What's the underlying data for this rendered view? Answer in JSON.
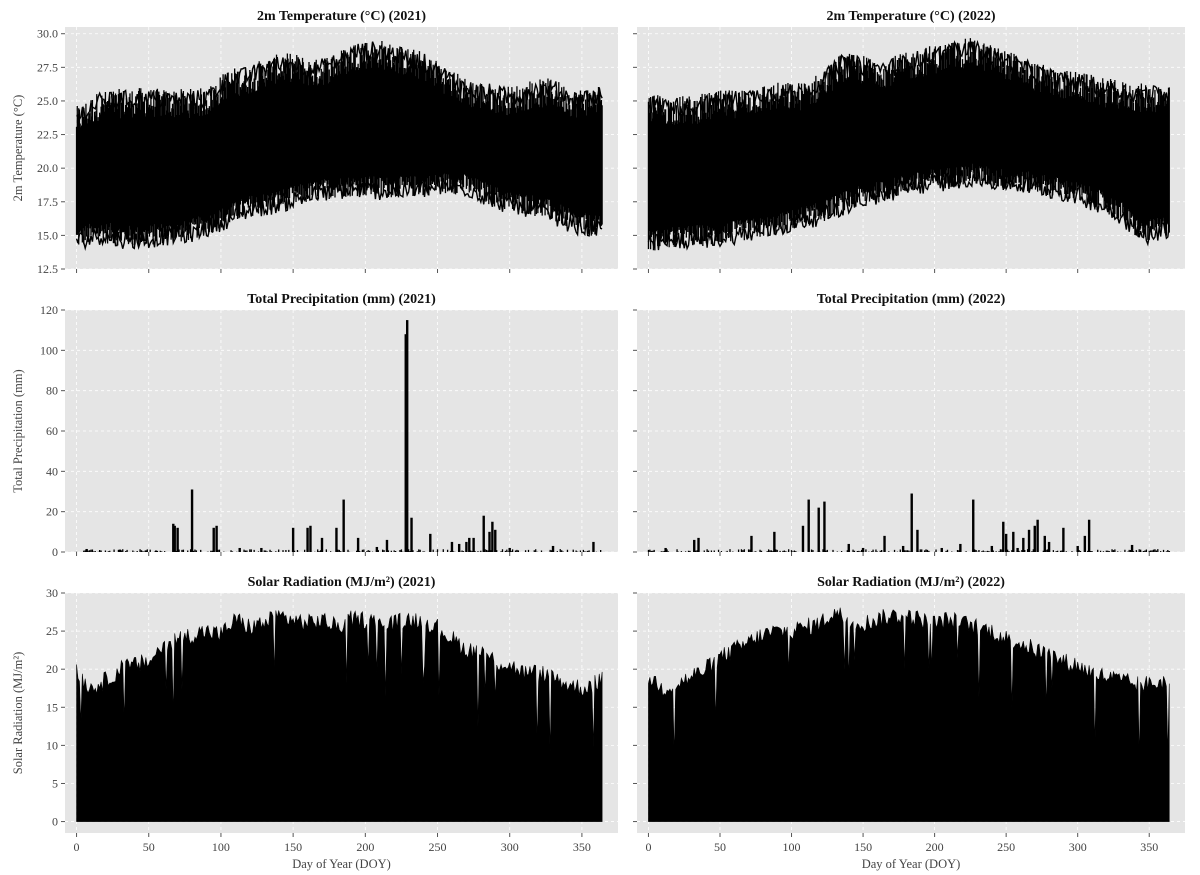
{
  "figure": {
    "x_label": "Day of Year (DOY)"
  },
  "chart_data": [
    {
      "type": "line",
      "title": "2m Temperature (°C) (2021)",
      "ylabel": "2m Temperature (°C)",
      "xlabel": "",
      "xlim": [
        -8,
        375
      ],
      "ylim": [
        12.5,
        30.5
      ],
      "yticks": [
        12.5,
        15.0,
        17.5,
        20.0,
        22.5,
        25.0,
        27.5,
        30.0
      ],
      "ytick_labels": [
        "12.5",
        "15.0",
        "17.5",
        "20.0",
        "22.5",
        "25.0",
        "27.5",
        "30.0"
      ],
      "xticks": [
        0,
        50,
        100,
        150,
        200,
        250,
        300,
        350
      ],
      "xtick_labels": [],
      "grid": true,
      "series_style": "daily min-max envelope (hourly values)",
      "x": [
        0,
        15,
        30,
        45,
        60,
        75,
        90,
        105,
        120,
        135,
        150,
        165,
        180,
        195,
        210,
        225,
        240,
        255,
        270,
        285,
        300,
        315,
        330,
        345,
        364
      ],
      "min": [
        14.8,
        15.3,
        15.0,
        14.9,
        15.2,
        15.3,
        15.8,
        16.5,
        17.2,
        17.5,
        17.9,
        18.3,
        18.6,
        18.7,
        18.6,
        18.6,
        18.7,
        18.9,
        18.8,
        18.1,
        17.5,
        17.3,
        16.8,
        16.0,
        15.6
      ],
      "max": [
        23.5,
        24.6,
        24.8,
        24.9,
        24.8,
        24.8,
        24.9,
        26.3,
        26.6,
        27.3,
        27.5,
        27.0,
        27.6,
        28.4,
        28.5,
        28.0,
        27.6,
        26.6,
        25.6,
        25.3,
        25.0,
        25.5,
        25.6,
        24.8,
        25.2
      ]
    },
    {
      "type": "line",
      "title": "2m Temperature (°C) (2022)",
      "ylabel": "",
      "xlabel": "",
      "xlim": [
        -8,
        375
      ],
      "ylim": [
        12.5,
        30.5
      ],
      "yticks": [
        12.5,
        15.0,
        17.5,
        20.0,
        22.5,
        25.0,
        27.5,
        30.0
      ],
      "ytick_labels": [],
      "xticks": [
        0,
        50,
        100,
        150,
        200,
        250,
        300,
        350
      ],
      "xtick_labels": [],
      "grid": true,
      "series_style": "daily min-max envelope (hourly values)",
      "x": [
        0,
        15,
        30,
        45,
        60,
        75,
        90,
        105,
        120,
        135,
        150,
        165,
        180,
        195,
        210,
        225,
        240,
        255,
        270,
        285,
        300,
        315,
        330,
        345,
        364
      ],
      "min": [
        14.6,
        14.8,
        15.0,
        15.0,
        15.3,
        15.5,
        15.8,
        16.3,
        16.7,
        17.4,
        18.0,
        18.3,
        18.8,
        19.1,
        19.3,
        19.6,
        19.3,
        19.1,
        18.9,
        18.6,
        18.2,
        17.6,
        16.8,
        15.2,
        15.8
      ],
      "max": [
        24.5,
        24.3,
        24.3,
        24.6,
        24.8,
        25.1,
        25.3,
        25.3,
        26.0,
        27.5,
        27.3,
        27.1,
        27.5,
        28.0,
        28.3,
        28.6,
        28.1,
        27.5,
        26.8,
        26.3,
        26.1,
        25.7,
        25.4,
        25.2,
        25.2
      ]
    },
    {
      "type": "bar",
      "title": "Total Precipitation (mm) (2021)",
      "ylabel": "Total Precipitation (mm)",
      "xlabel": "",
      "xlim": [
        -8,
        375
      ],
      "ylim": [
        0,
        120
      ],
      "yticks": [
        0,
        20,
        40,
        60,
        80,
        100,
        120
      ],
      "ytick_labels": [
        "0",
        "20",
        "40",
        "60",
        "80",
        "100",
        "120"
      ],
      "xticks": [
        0,
        50,
        100,
        150,
        200,
        250,
        300,
        350
      ],
      "xtick_labels": [],
      "grid": true,
      "x": [
        7,
        30,
        48,
        55,
        67,
        68,
        70,
        80,
        95,
        97,
        113,
        128,
        150,
        160,
        162,
        170,
        180,
        185,
        195,
        208,
        215,
        228,
        229,
        232,
        245,
        260,
        265,
        270,
        272,
        275,
        282,
        286,
        288,
        290,
        300,
        330,
        358
      ],
      "values": [
        1.5,
        1.2,
        0.8,
        0.5,
        14,
        13,
        12,
        31,
        12,
        13,
        2,
        2,
        12,
        12,
        13,
        7,
        12,
        26,
        7,
        2.5,
        6,
        108,
        115,
        17,
        9,
        5,
        4,
        5,
        7,
        7,
        18,
        10,
        15,
        11,
        2,
        3,
        5
      ]
    },
    {
      "type": "bar",
      "title": "Total Precipitation (mm) (2022)",
      "ylabel": "",
      "xlabel": "",
      "xlim": [
        -8,
        375
      ],
      "ylim": [
        0,
        120
      ],
      "yticks": [
        0,
        20,
        40,
        60,
        80,
        100,
        120
      ],
      "ytick_labels": [],
      "xticks": [
        0,
        50,
        100,
        150,
        200,
        250,
        300,
        350
      ],
      "xtick_labels": [],
      "grid": true,
      "x": [
        12,
        32,
        35,
        72,
        88,
        108,
        112,
        119,
        123,
        140,
        150,
        165,
        178,
        184,
        188,
        205,
        218,
        227,
        240,
        248,
        250,
        255,
        258,
        262,
        266,
        270,
        272,
        277,
        280,
        290,
        300,
        305,
        308,
        338
      ],
      "values": [
        2,
        6,
        7,
        8,
        10,
        13,
        26,
        22,
        25,
        4,
        2,
        8,
        3,
        29,
        11,
        2,
        4,
        26,
        3,
        15,
        9,
        10,
        2,
        7,
        11,
        13,
        16,
        8,
        5,
        12,
        3,
        8,
        16,
        3.5
      ]
    },
    {
      "type": "area",
      "title": "Solar Radiation (MJ/m²) (2021)",
      "ylabel": "Solar Radiation (MJ/m²)",
      "xlabel": "Day of Year (DOY)",
      "xlim": [
        -8,
        375
      ],
      "ylim": [
        -1.5,
        30
      ],
      "yticks": [
        0,
        5,
        10,
        15,
        20,
        25,
        30
      ],
      "ytick_labels": [
        "0",
        "5",
        "10",
        "15",
        "20",
        "25",
        "30"
      ],
      "xticks": [
        0,
        50,
        100,
        150,
        200,
        250,
        300,
        350
      ],
      "xtick_labels": [
        "0",
        "50",
        "100",
        "150",
        "200",
        "250",
        "300",
        "350"
      ],
      "grid": true,
      "x": [
        0,
        10,
        20,
        30,
        40,
        50,
        60,
        70,
        80,
        90,
        100,
        110,
        120,
        130,
        140,
        150,
        160,
        170,
        180,
        190,
        200,
        210,
        220,
        230,
        240,
        250,
        260,
        270,
        280,
        290,
        300,
        310,
        320,
        330,
        340,
        350,
        364
      ],
      "values": [
        19.5,
        17.5,
        18.5,
        20.0,
        20.5,
        21.0,
        23.0,
        24.0,
        24.5,
        25.0,
        24.5,
        26.5,
        25.5,
        26.0,
        27.0,
        26.5,
        26.0,
        26.5,
        25.5,
        26.5,
        26.5,
        26.0,
        26.0,
        26.5,
        26.5,
        25.5,
        24.0,
        22.5,
        22.5,
        21.0,
        20.5,
        19.5,
        19.5,
        19.0,
        18.0,
        17.5,
        18.5
      ]
    },
    {
      "type": "area",
      "title": "Solar Radiation (MJ/m²) (2022)",
      "ylabel": "",
      "xlabel": "Day of Year (DOY)",
      "xlim": [
        -8,
        375
      ],
      "ylim": [
        -1.5,
        30
      ],
      "yticks": [
        0,
        5,
        10,
        15,
        20,
        25,
        30
      ],
      "ytick_labels": [],
      "xticks": [
        0,
        50,
        100,
        150,
        200,
        250,
        300,
        350
      ],
      "xtick_labels": [
        "0",
        "50",
        "100",
        "150",
        "200",
        "250",
        "300",
        "350"
      ],
      "grid": true,
      "x": [
        0,
        10,
        20,
        30,
        40,
        50,
        60,
        70,
        80,
        90,
        100,
        110,
        120,
        130,
        140,
        150,
        160,
        170,
        180,
        190,
        200,
        210,
        220,
        230,
        240,
        250,
        260,
        270,
        280,
        290,
        300,
        310,
        320,
        330,
        340,
        350,
        364
      ],
      "values": [
        19.0,
        17.5,
        18.0,
        19.0,
        20.0,
        21.5,
        22.5,
        23.5,
        24.5,
        25.0,
        25.0,
        25.5,
        26.0,
        27.5,
        26.5,
        26.0,
        26.5,
        27.0,
        27.0,
        26.5,
        26.0,
        26.5,
        26.0,
        25.5,
        25.0,
        24.0,
        23.5,
        22.5,
        22.0,
        21.0,
        20.5,
        19.5,
        19.0,
        18.5,
        18.0,
        18.0,
        18.5
      ]
    }
  ]
}
